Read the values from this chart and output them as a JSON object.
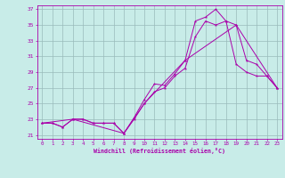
{
  "xlabel": "Windchill (Refroidissement éolien,°C)",
  "xlim": [
    -0.5,
    23.5
  ],
  "ylim": [
    20.5,
    37.5
  ],
  "xticks": [
    0,
    1,
    2,
    3,
    4,
    5,
    6,
    7,
    8,
    9,
    10,
    11,
    12,
    13,
    14,
    15,
    16,
    17,
    18,
    19,
    20,
    21,
    22,
    23
  ],
  "yticks": [
    21,
    23,
    25,
    27,
    29,
    31,
    33,
    35,
    37
  ],
  "background_color": "#c8ece8",
  "line_color": "#aa00aa",
  "grid_color": "#99bbbb",
  "series1_x": [
    0,
    1,
    2,
    3,
    4,
    5,
    6,
    7,
    8,
    9,
    10,
    11,
    12,
    13,
    14,
    15,
    16,
    17,
    18,
    19,
    20,
    21,
    22,
    23
  ],
  "series1_y": [
    22.5,
    22.5,
    22.0,
    23.0,
    23.0,
    22.5,
    22.5,
    22.5,
    21.2,
    23.2,
    25.5,
    27.5,
    27.3,
    28.8,
    30.5,
    35.5,
    36.0,
    37.0,
    35.5,
    30.0,
    29.0,
    28.5,
    28.5,
    27.0
  ],
  "series2_x": [
    0,
    1,
    2,
    3,
    4,
    5,
    6,
    7,
    8,
    9,
    10,
    11,
    12,
    13,
    14,
    15,
    16,
    17,
    18,
    19,
    20,
    21,
    22,
    23
  ],
  "series2_y": [
    22.5,
    22.5,
    22.0,
    23.0,
    23.0,
    22.5,
    22.5,
    22.5,
    21.2,
    23.0,
    25.0,
    26.5,
    27.0,
    28.5,
    29.5,
    33.5,
    35.5,
    35.0,
    35.5,
    35.0,
    30.5,
    30.0,
    28.5,
    27.0
  ],
  "series3_x": [
    0,
    3,
    8,
    10,
    14,
    19,
    23
  ],
  "series3_y": [
    22.5,
    23.0,
    21.2,
    25.0,
    30.5,
    35.0,
    27.0
  ]
}
